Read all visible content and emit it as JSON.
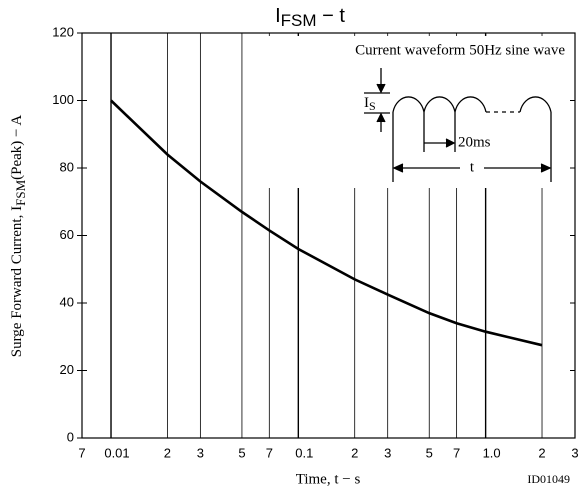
{
  "chart_data": {
    "type": "line",
    "title": {
      "main": "I",
      "sub": "FSM",
      "suffix": " − t"
    },
    "y_label": {
      "main": "Surge Forward Current, I",
      "sub": "FSM",
      "suffix": "(Peak) − A"
    },
    "x_label": "Time, t  − s",
    "figure_id": "ID01049",
    "inset": {
      "caption": "Current waveform 50Hz sine wave",
      "current_label": "I",
      "current_sub": "S",
      "period_label": "20ms",
      "duration_label": "t"
    },
    "x": [
      0.01,
      0.02,
      0.03,
      0.05,
      0.07,
      0.1,
      0.2,
      0.3,
      0.5,
      0.7,
      1.0,
      2
    ],
    "values": [
      100,
      84,
      76,
      67,
      61.5,
      56,
      47,
      42.5,
      37,
      34,
      31.5,
      27.5
    ],
    "color": "#000000",
    "x_scale": "log",
    "xlim": [
      0.007,
      3
    ],
    "xticks": [
      {
        "value": 0.007,
        "label": "7"
      },
      0.01,
      {
        "value": 0.02,
        "label": "2"
      },
      {
        "value": 0.03,
        "label": "3"
      },
      {
        "value": 0.05,
        "label": "5"
      },
      {
        "value": 0.07,
        "label": "7"
      },
      0.1,
      {
        "value": 0.2,
        "label": "2"
      },
      {
        "value": 0.3,
        "label": "3"
      },
      {
        "value": 0.5,
        "label": "5"
      },
      {
        "value": 0.7,
        "label": "7"
      },
      {
        "value": 1.0,
        "label": "1.0"
      },
      {
        "value": 2,
        "label": "2"
      },
      {
        "value": 3,
        "label": "3"
      }
    ],
    "ylim": [
      0,
      120
    ],
    "yticks": [
      0,
      20,
      40,
      60,
      80,
      100,
      120
    ],
    "grid": true
  }
}
